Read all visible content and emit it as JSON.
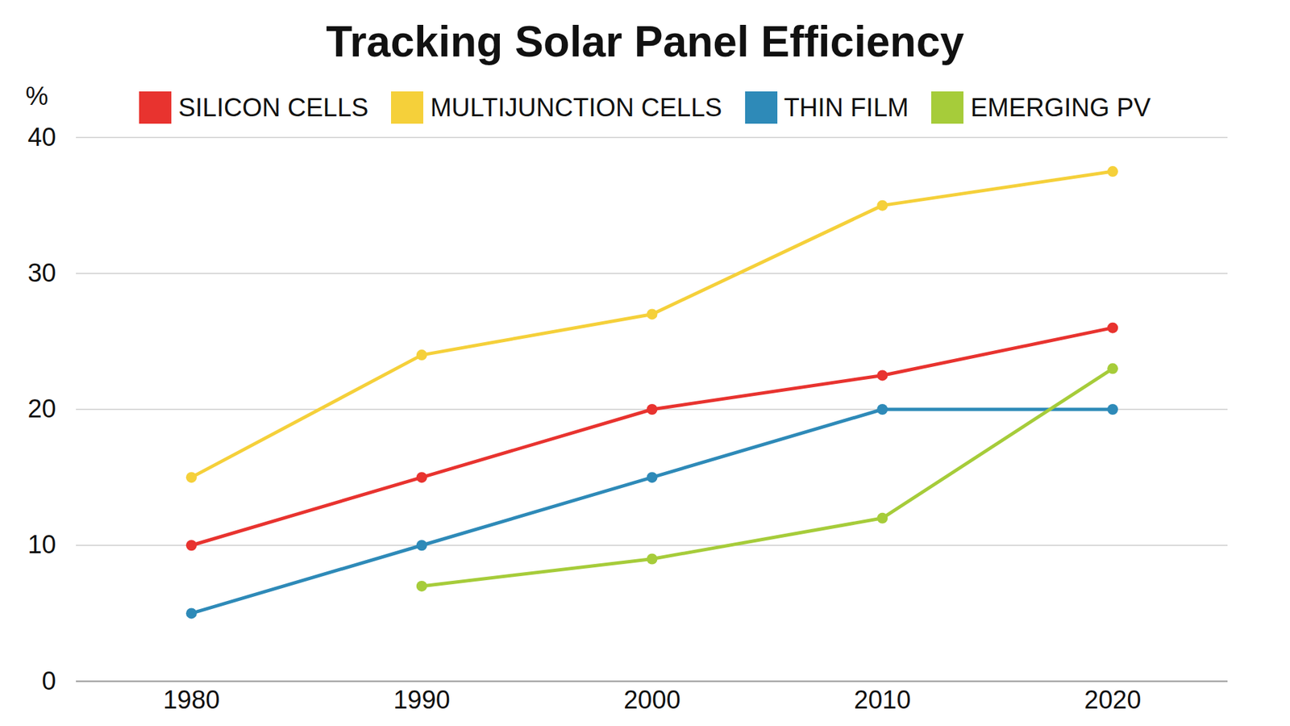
{
  "chart_data": {
    "type": "line",
    "title": "Tracking Solar Panel Efficiency",
    "y_label": "%",
    "x": [
      1980,
      1990,
      2000,
      2010,
      2020
    ],
    "series": [
      {
        "name": "SILICON CELLS",
        "color": "#e8332f",
        "values": [
          10,
          15,
          20,
          22.5,
          26
        ]
      },
      {
        "name": "MULTIJUNCTION CELLS",
        "color": "#f5d03a",
        "values": [
          15,
          24,
          27,
          35,
          37.5
        ]
      },
      {
        "name": "THIN FILM",
        "color": "#2e8ab8",
        "values": [
          5,
          10,
          15,
          20,
          20
        ]
      },
      {
        "name": "EMERGING PV",
        "color": "#a6cc3a",
        "values": [
          null,
          7,
          9,
          12,
          23
        ]
      }
    ],
    "xlim": [
      1975,
      2025
    ],
    "xticks": [
      1980,
      1990,
      2000,
      2010,
      2020
    ],
    "ylim": [
      0,
      40
    ],
    "yticks": [
      0,
      10,
      20,
      30,
      40
    ],
    "grid": true,
    "legend": "top",
    "marker": "circle"
  }
}
